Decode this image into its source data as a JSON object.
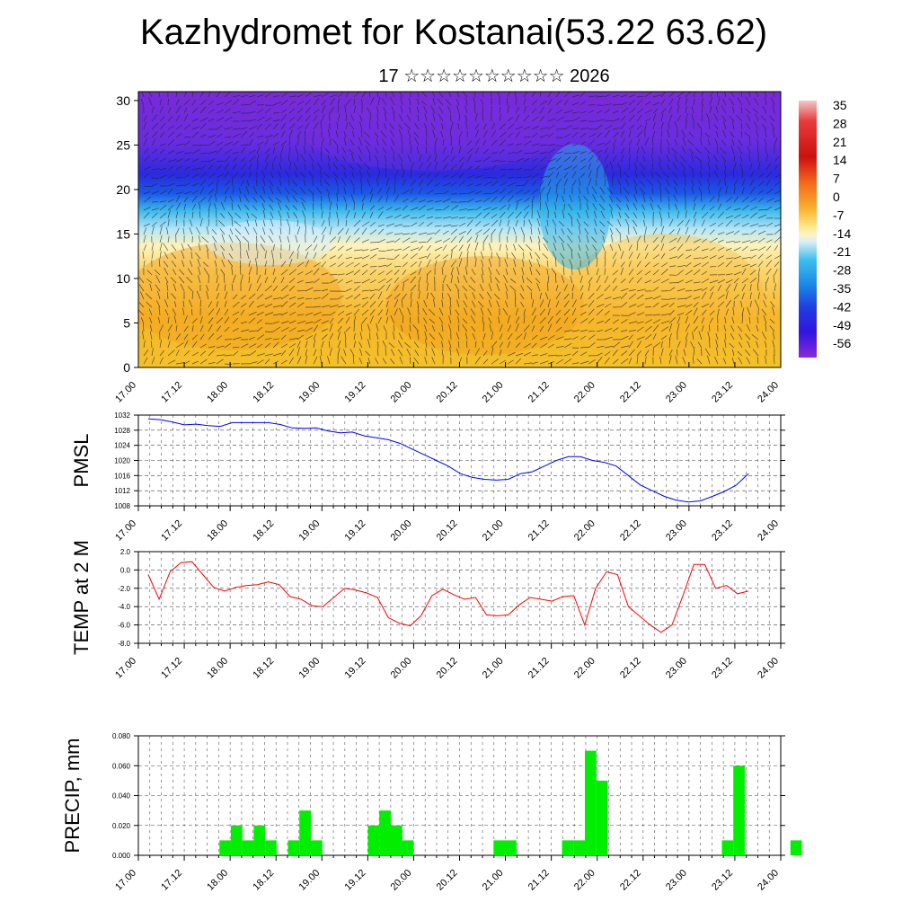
{
  "header": {
    "title": "Kazhydromet for Kostanai(53.22 63.62)",
    "subtitle": "17 ☆☆☆☆☆☆☆☆☆☆ 2026"
  },
  "colors": {
    "pmsl_line": "#0000ff",
    "temp_line": "#ff0000",
    "precip_bar": "#00ee00",
    "axis": "#000000"
  },
  "chart_data": [
    {
      "type": "heatmap",
      "name": "cross-section",
      "xlabel": "",
      "ylabel": "",
      "ylim": [
        0,
        31
      ],
      "y_ticks": [
        0,
        5,
        10,
        15,
        20,
        25,
        30
      ],
      "x_tick_labels": [
        "17.00",
        "17.12",
        "18.00",
        "18.12",
        "19.00",
        "19.12",
        "20.00",
        "20.12",
        "21.00",
        "21.12",
        "22.00",
        "22.12",
        "23.00",
        "23.12",
        "24.00"
      ],
      "colorbar_labels": [
        "35",
        "28",
        "21",
        "14",
        "7",
        "0",
        "-7",
        "-14",
        "-21",
        "-28",
        "-35",
        "-42",
        "-49",
        "-56"
      ],
      "grid": false
    },
    {
      "type": "line",
      "name": "pmsl",
      "ylabel": "PMSL",
      "ylim": [
        1008,
        1032
      ],
      "y_ticks": [
        "1008",
        "1012",
        "1016",
        "1020",
        "1024",
        "1028",
        "1032"
      ],
      "x_tick_labels": [
        "17.00",
        "17.12",
        "18.00",
        "18.12",
        "19.00",
        "19.12",
        "20.00",
        "20.12",
        "21.00",
        "21.12",
        "22.00",
        "22.12",
        "23.00",
        "23.12",
        "24.00"
      ],
      "x_step_hours": 3,
      "values": [
        1031,
        1030.8,
        1030.2,
        1029.4,
        1029.6,
        1029.2,
        1029.0,
        1030.0,
        1030.0,
        1030.0,
        1030.0,
        1029.5,
        1028.6,
        1028.5,
        1028.6,
        1027.8,
        1027.3,
        1027.5,
        1026.5,
        1026.0,
        1025.5,
        1024.5,
        1023.0,
        1021.5,
        1020.0,
        1018.5,
        1016.5,
        1015.5,
        1015.0,
        1014.8,
        1015.0,
        1016.5,
        1017.0,
        1018.5,
        1020.0,
        1021.0,
        1021.0,
        1020.0,
        1019.5,
        1018.5,
        1016.0,
        1013.5,
        1012.0,
        1010.5,
        1009.5,
        1009.0,
        1009.3,
        1010.5,
        1011.8,
        1013.5,
        1016.5
      ],
      "grid": true
    },
    {
      "type": "line",
      "name": "temp",
      "ylabel": "TEMP at 2 M",
      "ylim": [
        -8,
        2
      ],
      "y_ticks": [
        "-8.0",
        "-6.0",
        "-4.0",
        "-2.0",
        "0.0",
        "2.0"
      ],
      "x_tick_labels": [
        "17.00",
        "17.12",
        "18.00",
        "18.12",
        "19.00",
        "19.12",
        "20.00",
        "20.12",
        "21.00",
        "21.12",
        "22.00",
        "22.12",
        "23.00",
        "23.12",
        "24.00"
      ],
      "x_step_hours": 3,
      "values": [
        -0.5,
        -3.2,
        -0.2,
        0.8,
        0.9,
        -0.5,
        -1.9,
        -2.3,
        -1.9,
        -1.7,
        -1.6,
        -1.3,
        -1.6,
        -2.9,
        -3.2,
        -3.9,
        -4.0,
        -3.0,
        -2.0,
        -2.2,
        -2.5,
        -3.0,
        -5.2,
        -5.8,
        -6.1,
        -5.0,
        -2.8,
        -2.1,
        -2.7,
        -3.2,
        -3.0,
        -4.9,
        -5.0,
        -4.9,
        -3.8,
        -3.0,
        -3.2,
        -3.4,
        -2.9,
        -2.8,
        -6.0,
        -2.0,
        -0.2,
        -0.5,
        -4.0,
        -5.0,
        -6.0,
        -6.8,
        -6.0,
        -2.8,
        0.6,
        0.6,
        -2.0,
        -1.7,
        -2.6,
        -2.3
      ],
      "grid": true
    },
    {
      "type": "bar",
      "name": "precip",
      "ylabel": "PRECIP, mm",
      "ylim": [
        0,
        0.08
      ],
      "y_ticks": [
        "0.000",
        "0.020",
        "0.040",
        "0.060",
        "0.080"
      ],
      "x_tick_labels": [
        "17.00",
        "17.12",
        "18.00",
        "18.12",
        "19.00",
        "19.12",
        "20.00",
        "20.12",
        "21.00",
        "21.12",
        "22.00",
        "22.12",
        "23.00",
        "23.12",
        "24.00"
      ],
      "x_step_hours": 3,
      "values": [
        0,
        0,
        0,
        0,
        0,
        0,
        0,
        0.01,
        0.02,
        0.01,
        0.02,
        0.01,
        0,
        0.01,
        0.03,
        0.01,
        0,
        0,
        0,
        0,
        0.02,
        0.03,
        0.02,
        0.01,
        0,
        0,
        0,
        0,
        0,
        0,
        0,
        0.01,
        0.01,
        0,
        0,
        0,
        0,
        0.01,
        0.01,
        0.07,
        0.05,
        0,
        0,
        0,
        0,
        0,
        0,
        0,
        0,
        0,
        0,
        0.01,
        0.06,
        0,
        0,
        0,
        0,
        0.01
      ],
      "grid": true
    }
  ]
}
